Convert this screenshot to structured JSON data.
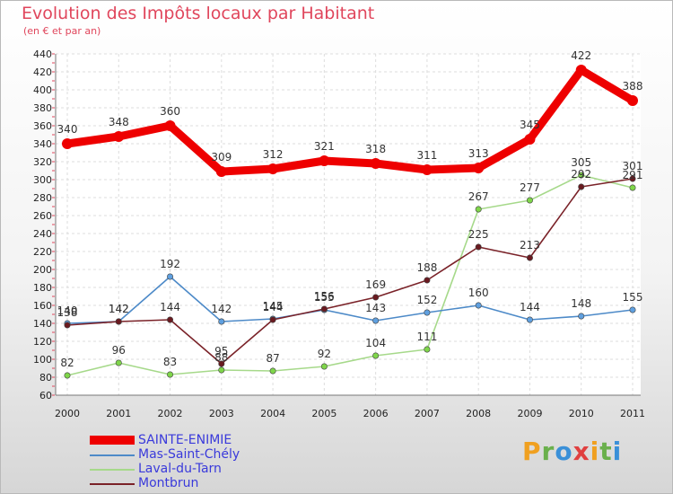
{
  "header": {
    "title": "Evolution des Impôts locaux par Habitant",
    "subtitle": "(en € et par an)"
  },
  "logo": {
    "letters": [
      "P",
      "r",
      "o",
      "x",
      "i",
      "t",
      "i"
    ],
    "colors": [
      "#f0a020",
      "#6ab04c",
      "#3a90d8",
      "#e04040",
      "#f0a020",
      "#6ab04c",
      "#3a90d8"
    ]
  },
  "chart_data": {
    "type": "line",
    "title": "Evolution des Impôts locaux par Habitant",
    "subtitle": "(en € et par an)",
    "x": [
      "2000",
      "2001",
      "2002",
      "2003",
      "2004",
      "2005",
      "2006",
      "2007",
      "2008",
      "2009",
      "2010",
      "2011"
    ],
    "ylim": [
      60,
      440
    ],
    "yticks": [
      "60",
      "80",
      "100",
      "120",
      "140",
      "160",
      "180",
      "200",
      "220",
      "240",
      "260",
      "280",
      "300",
      "320",
      "340",
      "360",
      "380",
      "400",
      "420",
      "440"
    ],
    "grid": true,
    "legend_position": "bottom-left",
    "series": [
      {
        "name": "SAINTE-ENIMIE",
        "color": "#ee0000",
        "marker": "#ee0000",
        "values": [
          340,
          348,
          360,
          309,
          312,
          321,
          318,
          311,
          313,
          345,
          422,
          388
        ],
        "labels": [
          "340",
          "348",
          "360",
          "309",
          "312",
          "321",
          "318",
          "311",
          "313",
          "345",
          "422",
          "388"
        ]
      },
      {
        "name": "Mas-Saint-Chély",
        "color": "#4d8ac8",
        "marker": "#5fa0e0",
        "values": [
          140,
          142,
          192,
          142,
          145,
          155,
          143,
          152,
          160,
          144,
          148,
          155
        ],
        "labels": [
          "140",
          "142",
          "192",
          "142",
          "145",
          "155",
          "143",
          "152",
          "160",
          "144",
          "148",
          "155"
        ]
      },
      {
        "name": "Laval-du-Tarn",
        "color": "#a6d98a",
        "marker": "#7fd64a",
        "values": [
          82,
          96,
          83,
          88,
          87,
          92,
          104,
          111,
          267,
          277,
          305,
          291
        ],
        "labels": [
          "82",
          "96",
          "83",
          "88",
          "87",
          "92",
          "104",
          "111",
          "267",
          "277",
          "305",
          "291"
        ]
      },
      {
        "name": "Montbrun",
        "color": "#7a2228",
        "marker": "#6a1a20",
        "values": [
          138,
          142,
          144,
          95,
          144,
          156,
          169,
          188,
          225,
          213,
          292,
          301
        ],
        "labels": [
          "138",
          "142",
          "144",
          "95",
          "144",
          "156",
          "169",
          "188",
          "225",
          "213",
          "292",
          "301"
        ]
      }
    ]
  }
}
